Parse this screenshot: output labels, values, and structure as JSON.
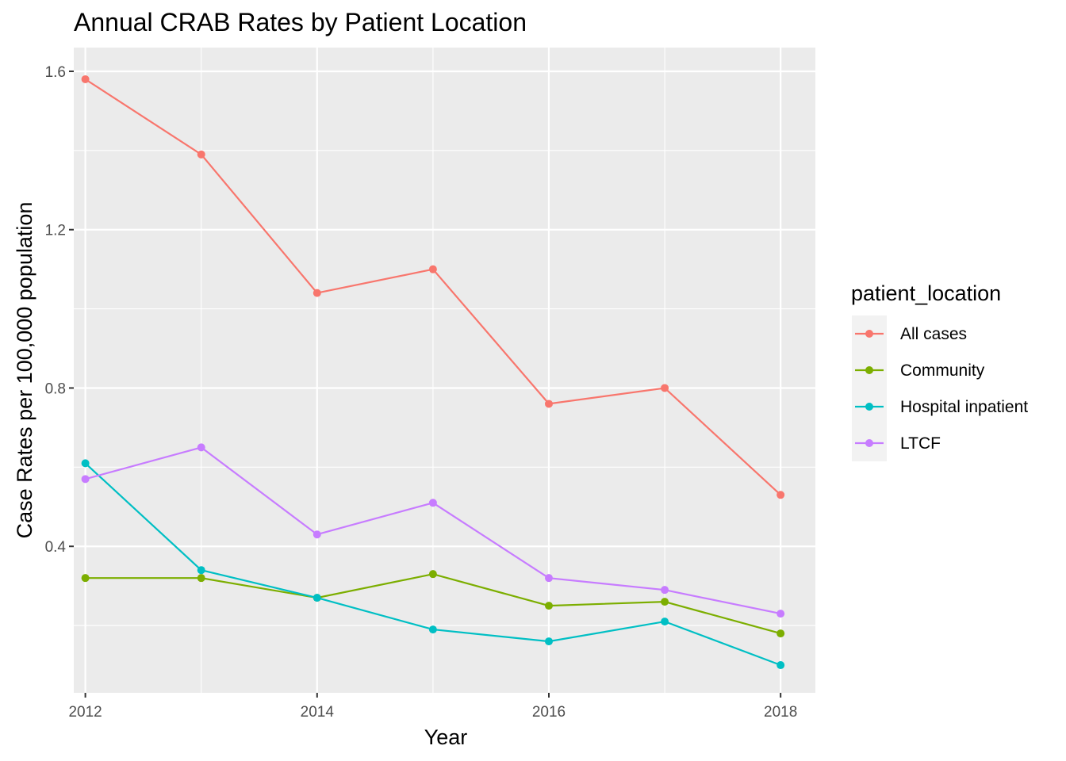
{
  "chart_data": {
    "type": "line",
    "title": "Annual CRAB Rates by Patient Location",
    "xlabel": "Year",
    "ylabel": "Case Rates per 100,000 population",
    "x": [
      2012,
      2013,
      2014,
      2015,
      2016,
      2017,
      2018
    ],
    "xlim": [
      2011.9,
      2018.3
    ],
    "ylim": [
      0.03,
      1.66
    ],
    "x_ticks": [
      2012,
      2014,
      2016,
      2018
    ],
    "x_tick_labels": [
      "2012",
      "2014",
      "2016",
      "2018"
    ],
    "y_ticks": [
      0.4,
      0.8,
      1.2,
      1.6
    ],
    "y_tick_labels": [
      "0.4",
      "0.8",
      "1.2",
      "1.6"
    ],
    "grid": true,
    "legend": {
      "title": "patient_location",
      "position": "right"
    },
    "series": [
      {
        "name": "All cases",
        "color": "#F8766D",
        "values": [
          1.58,
          1.39,
          1.04,
          1.1,
          0.76,
          0.8,
          0.53
        ]
      },
      {
        "name": "Community",
        "color": "#7CAE00",
        "values": [
          0.32,
          0.32,
          0.27,
          0.33,
          0.25,
          0.26,
          0.18
        ]
      },
      {
        "name": "Hospital inpatient",
        "color": "#00BFC4",
        "values": [
          0.61,
          0.34,
          0.27,
          0.19,
          0.16,
          0.21,
          0.1
        ]
      },
      {
        "name": "LTCF",
        "color": "#C77CFF",
        "values": [
          0.57,
          0.65,
          0.43,
          0.51,
          0.32,
          0.29,
          0.23
        ]
      }
    ]
  }
}
